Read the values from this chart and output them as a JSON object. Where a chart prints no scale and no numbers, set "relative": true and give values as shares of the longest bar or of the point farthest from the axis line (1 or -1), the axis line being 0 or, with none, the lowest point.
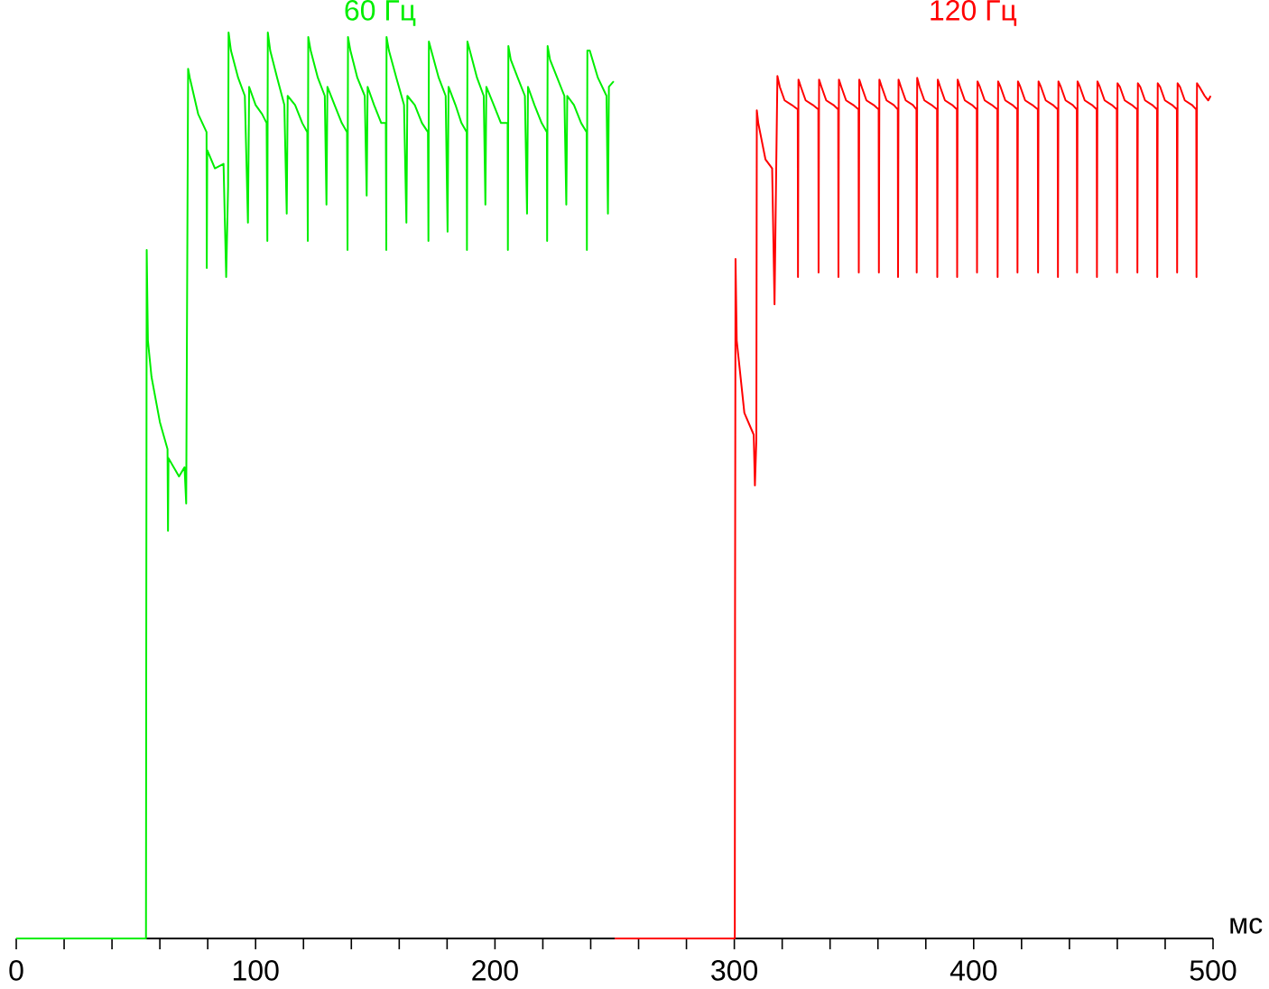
{
  "chart_data": {
    "type": "line",
    "relative": true,
    "xlabel": "мс",
    "xlim": [
      0,
      500
    ],
    "xticks": [
      0,
      {
        "value": 20,
        "label": null
      },
      {
        "value": 40,
        "label": null
      },
      {
        "value": 60,
        "label": null
      },
      {
        "value": 80,
        "label": null
      },
      100,
      {
        "value": 120,
        "label": null
      },
      {
        "value": 140,
        "label": null
      },
      {
        "value": 160,
        "label": null
      },
      {
        "value": 180,
        "label": null
      },
      200,
      {
        "value": 220,
        "label": null
      },
      {
        "value": 240,
        "label": null
      },
      {
        "value": 260,
        "label": null
      },
      {
        "value": 280,
        "label": null
      },
      300,
      {
        "value": 320,
        "label": null
      },
      {
        "value": 340,
        "label": null
      },
      {
        "value": 360,
        "label": null
      },
      {
        "value": 380,
        "label": null
      },
      400,
      {
        "value": 420,
        "label": null
      },
      {
        "value": 440,
        "label": null
      },
      {
        "value": 460,
        "label": null
      },
      {
        "value": 480,
        "label": null
      },
      500
    ],
    "series": [
      {
        "name": "60 Гц",
        "color": "#00ee00",
        "x": [
          0,
          54.2,
          54.3,
          54.5,
          55,
          56.5,
          60,
          63.2,
          63.4,
          63.6,
          68,
          70.3,
          71,
          71.8,
          72.5,
          76,
          79.5,
          79.6,
          79.8,
          83,
          86.6,
          87.7,
          88.5,
          88.7,
          89.7,
          92.7,
          95.5,
          96.8,
          97.3,
          100,
          102.7,
          104.6,
          104.9,
          105.1,
          106.1,
          109,
          112,
          113,
          113.4,
          116.5,
          119.5,
          121.6,
          121.8,
          122,
          123,
          126,
          128.9,
          129.6,
          130,
          133,
          136,
          138.2,
          138.4,
          138.6,
          139.6,
          142.5,
          145.6,
          146.4,
          146.8,
          149.5,
          152.5,
          154.4,
          154.6,
          154.7,
          155.7,
          158.8,
          162,
          163,
          163.4,
          166.5,
          169.5,
          172,
          172.2,
          172.4,
          173.4,
          176.5,
          179.4,
          180.2,
          180.6,
          183.5,
          186,
          188.2,
          188.3,
          188.5,
          189.5,
          192.5,
          195.3,
          196,
          196.4,
          199.5,
          202.5,
          205.3,
          205.4,
          205.6,
          206.6,
          209.5,
          212.5,
          213.4,
          213.8,
          216.5,
          219.5,
          221.7,
          221.8,
          222,
          223,
          226,
          229,
          229.8,
          230.2,
          233,
          236,
          238.3,
          238.4,
          238.6,
          239.6,
          243,
          246.6,
          247.2,
          247.6,
          249.6
        ],
        "values": [
          0,
          0,
          0.29,
          0.76,
          0.66,
          0.62,
          0.57,
          0.54,
          0.45,
          0.53,
          0.51,
          0.52,
          0.48,
          0.96,
          0.95,
          0.91,
          0.89,
          0.74,
          0.87,
          0.85,
          0.855,
          0.73,
          0.83,
          1.0,
          0.98,
          0.95,
          0.93,
          0.79,
          0.94,
          0.92,
          0.91,
          0.9,
          0.77,
          1.0,
          0.98,
          0.95,
          0.92,
          0.8,
          0.93,
          0.92,
          0.9,
          0.89,
          0.77,
          0.995,
          0.98,
          0.95,
          0.93,
          0.81,
          0.94,
          0.92,
          0.9,
          0.89,
          0.76,
          0.995,
          0.98,
          0.95,
          0.93,
          0.82,
          0.94,
          0.92,
          0.9,
          0.9,
          0.76,
          0.995,
          0.98,
          0.95,
          0.92,
          0.79,
          0.93,
          0.92,
          0.9,
          0.89,
          0.77,
          0.99,
          0.98,
          0.95,
          0.93,
          0.78,
          0.94,
          0.92,
          0.9,
          0.89,
          0.76,
          0.99,
          0.98,
          0.95,
          0.93,
          0.81,
          0.94,
          0.92,
          0.9,
          0.9,
          0.76,
          0.985,
          0.97,
          0.95,
          0.93,
          0.8,
          0.94,
          0.92,
          0.9,
          0.89,
          0.77,
          0.985,
          0.97,
          0.95,
          0.93,
          0.81,
          0.93,
          0.92,
          0.9,
          0.89,
          0.76,
          0.98,
          0.98,
          0.95,
          0.93,
          0.8,
          0.94,
          0.946
        ]
      },
      {
        "name": "120 Гц",
        "color": "#ff0000",
        "x": [
          250,
          300.2,
          300.3,
          300.5,
          301,
          304.2,
          308.1,
          308.6,
          309.2,
          309.4,
          310,
          313,
          315.8,
          316.8,
          317.5,
          318,
          319,
          321,
          324,
          326.5,
          326.6,
          326.8,
          327.8,
          329.8,
          332.8,
          335.1,
          335.2,
          335.4,
          336.4,
          338.4,
          341.4,
          343.4,
          343.5,
          343.7,
          344.7,
          346.7,
          349.7,
          351.9,
          352,
          352.2,
          353.2,
          355.2,
          358.2,
          360.3,
          360.4,
          360.6,
          361.6,
          363.6,
          366.6,
          368.3,
          368.4,
          368.6,
          369.6,
          371.6,
          374.6,
          376.1,
          376.2,
          376.4,
          377.4,
          379.4,
          382.4,
          384.7,
          384.8,
          385,
          386,
          388,
          391,
          393,
          393.1,
          393.3,
          394.3,
          396.3,
          399.3,
          401.3,
          401.4,
          401.6,
          402.6,
          404.6,
          407.6,
          409.9,
          410,
          410.2,
          411.2,
          413.2,
          416.2,
          418.2,
          418.3,
          418.5,
          419.5,
          421.5,
          424.5,
          426.8,
          426.9,
          427.1,
          428.1,
          430.1,
          433.1,
          435.1,
          435.2,
          435.4,
          436.4,
          438.4,
          441.4,
          443.1,
          443.2,
          443.4,
          444.4,
          446.4,
          449.4,
          451.4,
          451.5,
          451.7,
          452.7,
          454.7,
          457.7,
          459.8,
          459.9,
          460.1,
          461.1,
          463.1,
          466.1,
          468.3,
          468.4,
          468.6,
          469.6,
          471.6,
          474.6,
          476.6,
          476.7,
          476.9,
          477.9,
          479.9,
          482.9,
          484.9,
          485,
          485.2,
          486.2,
          488.2,
          491.2,
          493,
          493.1,
          493.3,
          494.3,
          496.5,
          498,
          499
        ],
        "values": [
          0,
          0,
          0.35,
          0.75,
          0.66,
          0.58,
          0.556,
          0.5,
          0.55,
          0.914,
          0.9,
          0.86,
          0.85,
          0.7,
          0.85,
          0.952,
          0.94,
          0.925,
          0.92,
          0.915,
          0.73,
          0.948,
          0.94,
          0.925,
          0.92,
          0.915,
          0.735,
          0.948,
          0.94,
          0.925,
          0.92,
          0.915,
          0.73,
          0.948,
          0.94,
          0.925,
          0.92,
          0.915,
          0.735,
          0.948,
          0.94,
          0.925,
          0.92,
          0.915,
          0.735,
          0.948,
          0.94,
          0.925,
          0.92,
          0.915,
          0.73,
          0.948,
          0.94,
          0.925,
          0.92,
          0.915,
          0.735,
          0.95,
          0.94,
          0.925,
          0.92,
          0.915,
          0.73,
          0.948,
          0.94,
          0.925,
          0.92,
          0.915,
          0.73,
          0.948,
          0.94,
          0.925,
          0.92,
          0.915,
          0.735,
          0.946,
          0.94,
          0.925,
          0.92,
          0.915,
          0.73,
          0.946,
          0.94,
          0.925,
          0.92,
          0.915,
          0.735,
          0.946,
          0.94,
          0.925,
          0.92,
          0.915,
          0.735,
          0.946,
          0.94,
          0.925,
          0.92,
          0.915,
          0.73,
          0.946,
          0.94,
          0.925,
          0.92,
          0.915,
          0.735,
          0.946,
          0.94,
          0.925,
          0.92,
          0.915,
          0.73,
          0.946,
          0.94,
          0.925,
          0.92,
          0.915,
          0.735,
          0.944,
          0.94,
          0.925,
          0.92,
          0.915,
          0.735,
          0.944,
          0.94,
          0.925,
          0.92,
          0.915,
          0.73,
          0.944,
          0.94,
          0.925,
          0.92,
          0.915,
          0.735,
          0.944,
          0.94,
          0.925,
          0.92,
          0.915,
          0.73,
          0.944,
          0.94,
          0.93,
          0.925,
          0.93
        ]
      }
    ]
  }
}
